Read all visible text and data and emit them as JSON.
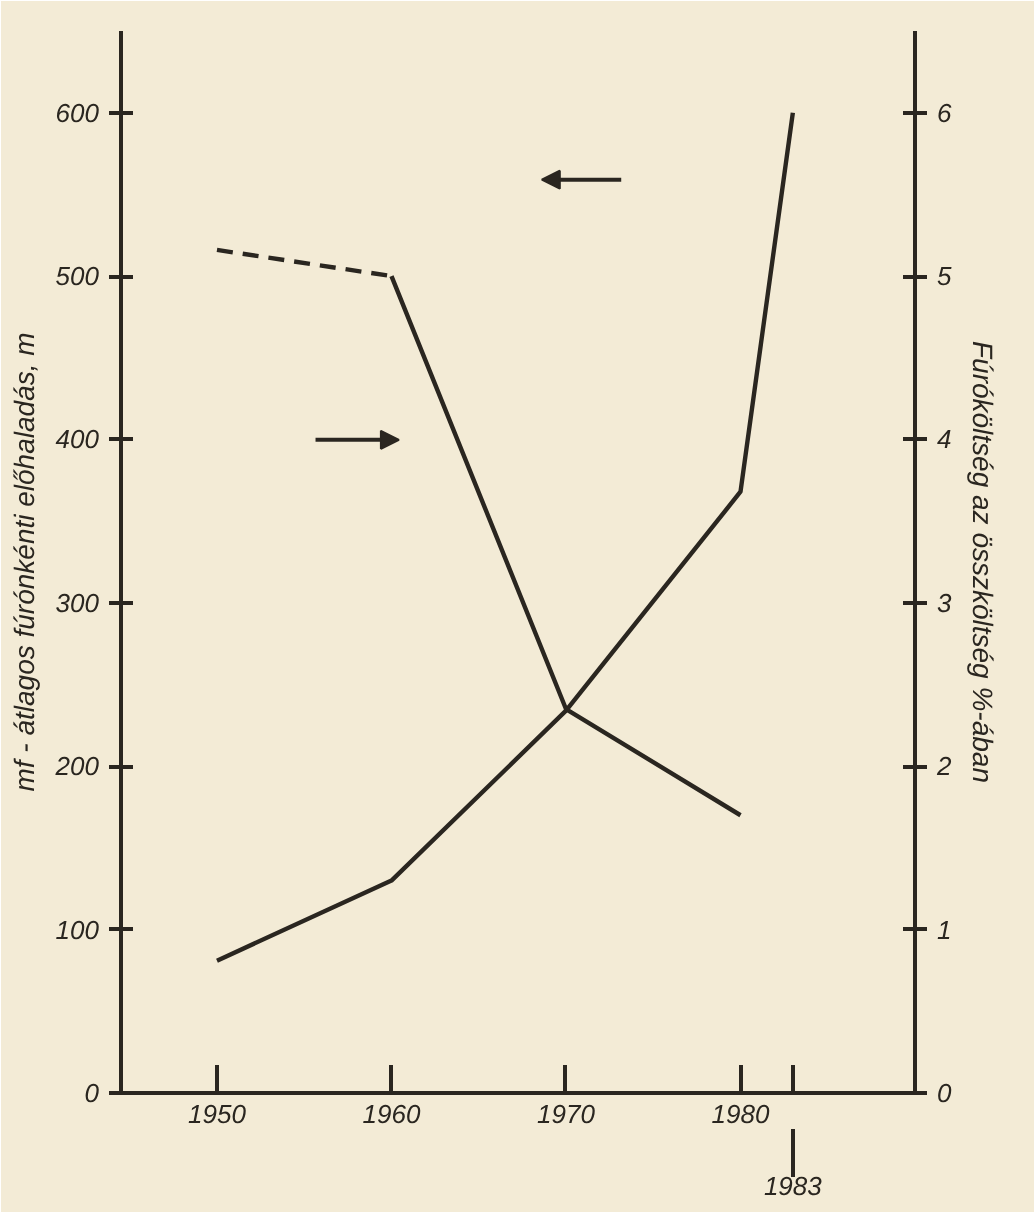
{
  "chart_data": {
    "type": "line",
    "xlabel": null,
    "ylabel": "mf - átlagos fúrónkénti előhaladás, m",
    "y2label": "Fúróköltség az összköltség %-ában",
    "series": [
      {
        "color": "#2a2620",
        "x": [
          1950,
          1960,
          1970,
          1980,
          1983
        ],
        "values": [
          81,
          130,
          234,
          368,
          600
        ],
        "line_style": "solid"
      },
      {
        "color": "#2a2620",
        "x": [
          1950,
          1960
        ],
        "values": [
          5.16,
          5.0
        ],
        "axis": "y2",
        "line_style": "dashed"
      },
      {
        "color": "#2a2620",
        "x": [
          1960,
          1970,
          1980
        ],
        "values": [
          5.0,
          2.35,
          1.7
        ],
        "axis": "y2",
        "line_style": "solid"
      }
    ],
    "xlim": [
      1944.5,
      1990
    ],
    "xticks": [
      1950,
      1960,
      1970,
      1980,
      {
        "value": 1983,
        "label": null
      }
    ],
    "annotations": [
      "1983"
    ],
    "ylim": [
      0,
      650
    ],
    "yticks": [
      0,
      100,
      200,
      300,
      400,
      500,
      600
    ],
    "y2lim": [
      0,
      6.5
    ],
    "y2ticks": [
      0,
      1,
      2,
      3,
      4,
      5,
      6
    ],
    "grid": false,
    "legend": false,
    "marker": "none"
  }
}
